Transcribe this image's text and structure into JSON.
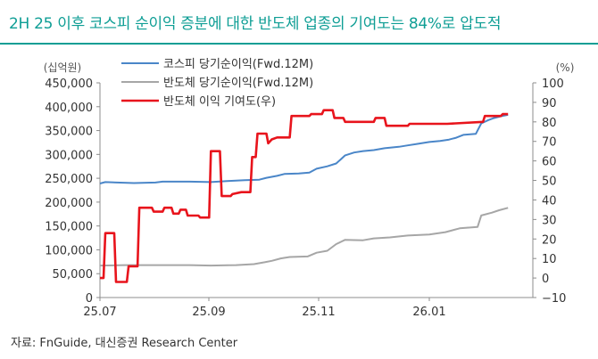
{
  "title": "2H 25 이후 코스피 순이익 증분에 대한 반도체 업종의 기여도는 84%로 압도적",
  "source": "자료: FnGuide, 대신증권 Research Center",
  "chart_data": {
    "type": "line",
    "left_axis_unit": "(십억원)",
    "right_axis_unit": "(%)",
    "y_left_ticks": [
      "450,000",
      "400,000",
      "350,000",
      "300,000",
      "250,000",
      "200,000",
      "150,000",
      "100,000",
      "50,000",
      "0"
    ],
    "y_right_ticks": [
      "100",
      "90",
      "80",
      "70",
      "60",
      "50",
      "40",
      "30",
      "20",
      "10",
      "0",
      "−10"
    ],
    "ylim_left": [
      0,
      450000
    ],
    "ylim_right": [
      -10,
      100
    ],
    "x_ticks": [
      "25.07",
      "25.09",
      "25.11",
      "26.01"
    ],
    "legend": [
      {
        "name": "코스피 당기순이익(Fwd.12M)",
        "color": "#4a86c8"
      },
      {
        "name": "반도체 당기순이익(Fwd.12M)",
        "color": "#a6a6a6"
      },
      {
        "name": "반도체 이익 기여도(우)",
        "color": "#e8141c"
      }
    ],
    "x_range": [
      "2025-07-01",
      "2026-02-28"
    ],
    "series": [
      {
        "name": "코스피 당기순이익(Fwd.12M)",
        "axis": "left",
        "color": "#4a86c8",
        "points": [
          [
            "2025-07-01",
            239000
          ],
          [
            "2025-07-04",
            242000
          ],
          [
            "2025-07-20",
            240000
          ],
          [
            "2025-08-01",
            241000
          ],
          [
            "2025-08-05",
            243000
          ],
          [
            "2025-08-20",
            243000
          ],
          [
            "2025-09-01",
            242000
          ],
          [
            "2025-09-10",
            244000
          ],
          [
            "2025-09-20",
            246000
          ],
          [
            "2025-09-28",
            247000
          ],
          [
            "2025-10-02",
            251000
          ],
          [
            "2025-10-08",
            255000
          ],
          [
            "2025-10-12",
            259000
          ],
          [
            "2025-10-20",
            260000
          ],
          [
            "2025-10-26",
            262000
          ],
          [
            "2025-10-30",
            270000
          ],
          [
            "2025-11-05",
            275000
          ],
          [
            "2025-11-10",
            281000
          ],
          [
            "2025-11-15",
            298000
          ],
          [
            "2025-11-20",
            304000
          ],
          [
            "2025-11-25",
            307000
          ],
          [
            "2025-12-01",
            309000
          ],
          [
            "2025-12-07",
            313000
          ],
          [
            "2025-12-15",
            316000
          ],
          [
            "2025-12-20",
            319000
          ],
          [
            "2025-12-25",
            322000
          ],
          [
            "2026-01-01",
            326000
          ],
          [
            "2026-01-07",
            328000
          ],
          [
            "2026-01-12",
            331000
          ],
          [
            "2026-01-16",
            335000
          ],
          [
            "2026-01-20",
            341000
          ],
          [
            "2026-01-27",
            343000
          ],
          [
            "2026-01-30",
            365000
          ],
          [
            "2026-02-03",
            372000
          ],
          [
            "2026-02-06",
            376000
          ],
          [
            "2026-02-10",
            380000
          ],
          [
            "2026-02-14",
            383000
          ]
        ]
      },
      {
        "name": "반도체 당기순이익(Fwd.12M)",
        "axis": "left",
        "color": "#a6a6a6",
        "points": [
          [
            "2025-07-01",
            67000
          ],
          [
            "2025-07-15",
            68000
          ],
          [
            "2025-08-01",
            68000
          ],
          [
            "2025-08-20",
            68000
          ],
          [
            "2025-09-01",
            67000
          ],
          [
            "2025-09-15",
            68000
          ],
          [
            "2025-09-25",
            70000
          ],
          [
            "2025-10-01",
            74000
          ],
          [
            "2025-10-05",
            77000
          ],
          [
            "2025-10-10",
            82000
          ],
          [
            "2025-10-15",
            85000
          ],
          [
            "2025-10-25",
            86000
          ],
          [
            "2025-10-30",
            94000
          ],
          [
            "2025-11-05",
            98000
          ],
          [
            "2025-11-10",
            112000
          ],
          [
            "2025-11-15",
            121000
          ],
          [
            "2025-11-25",
            120000
          ],
          [
            "2025-12-01",
            124000
          ],
          [
            "2025-12-10",
            126000
          ],
          [
            "2025-12-20",
            130000
          ],
          [
            "2026-01-01",
            132000
          ],
          [
            "2026-01-10",
            137000
          ],
          [
            "2026-01-18",
            145000
          ],
          [
            "2026-01-28",
            148000
          ],
          [
            "2026-01-30",
            172000
          ],
          [
            "2026-02-05",
            178000
          ],
          [
            "2026-02-09",
            183000
          ],
          [
            "2026-02-14",
            188000
          ]
        ]
      },
      {
        "name": "반도체 이익 기여도(우)",
        "axis": "right",
        "color": "#e8141c",
        "points": [
          [
            "2025-07-01",
            0
          ],
          [
            "2025-07-03",
            0
          ],
          [
            "2025-07-04",
            23
          ],
          [
            "2025-07-09",
            23
          ],
          [
            "2025-07-10",
            -2
          ],
          [
            "2025-07-16",
            -2
          ],
          [
            "2025-07-17",
            6
          ],
          [
            "2025-07-22",
            6
          ],
          [
            "2025-07-23",
            36
          ],
          [
            "2025-07-30",
            36
          ],
          [
            "2025-07-31",
            34
          ],
          [
            "2025-08-05",
            34
          ],
          [
            "2025-08-06",
            36
          ],
          [
            "2025-08-10",
            36
          ],
          [
            "2025-08-11",
            33
          ],
          [
            "2025-08-14",
            33
          ],
          [
            "2025-08-15",
            35
          ],
          [
            "2025-08-18",
            35
          ],
          [
            "2025-08-19",
            32
          ],
          [
            "2025-08-25",
            32
          ],
          [
            "2025-08-26",
            31
          ],
          [
            "2025-08-31",
            31
          ],
          [
            "2025-09-01",
            65
          ],
          [
            "2025-09-06",
            65
          ],
          [
            "2025-09-07",
            42
          ],
          [
            "2025-09-12",
            42
          ],
          [
            "2025-09-13",
            43
          ],
          [
            "2025-09-18",
            44
          ],
          [
            "2025-09-23",
            44
          ],
          [
            "2025-09-24",
            62
          ],
          [
            "2025-09-26",
            62
          ],
          [
            "2025-09-27",
            74
          ],
          [
            "2025-10-02",
            74
          ],
          [
            "2025-10-03",
            69
          ],
          [
            "2025-10-05",
            71
          ],
          [
            "2025-10-08",
            72
          ],
          [
            "2025-10-15",
            72
          ],
          [
            "2025-10-16",
            83
          ],
          [
            "2025-10-26",
            83
          ],
          [
            "2025-10-27",
            84
          ],
          [
            "2025-11-02",
            84
          ],
          [
            "2025-11-03",
            86
          ],
          [
            "2025-11-08",
            86
          ],
          [
            "2025-11-09",
            82
          ],
          [
            "2025-11-14",
            82
          ],
          [
            "2025-11-15",
            80
          ],
          [
            "2025-12-01",
            80
          ],
          [
            "2025-12-02",
            82
          ],
          [
            "2025-12-07",
            82
          ],
          [
            "2025-12-08",
            78
          ],
          [
            "2025-12-20",
            78
          ],
          [
            "2025-12-21",
            79
          ],
          [
            "2026-01-10",
            79
          ],
          [
            "2026-01-11",
            79
          ],
          [
            "2026-01-31",
            80
          ],
          [
            "2026-02-01",
            83
          ],
          [
            "2026-02-10",
            83
          ],
          [
            "2026-02-11",
            84
          ],
          [
            "2026-02-14",
            84
          ]
        ]
      }
    ]
  }
}
